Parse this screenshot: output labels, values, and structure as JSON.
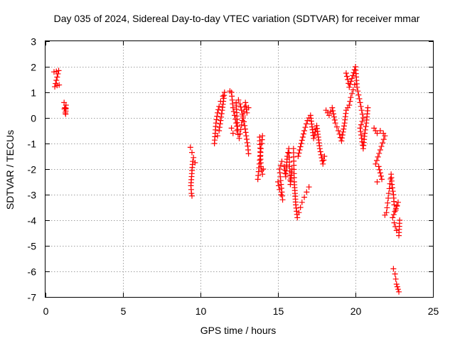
{
  "chart_data": {
    "type": "scatter",
    "title": "Day 035 of 2024, Sidereal Day-to-day VTEC variation (SDTVAR) for receiver mmar",
    "xlabel": "GPS time / hours",
    "ylabel": "SDTVAR / TECUs",
    "xlim": [
      0,
      25
    ],
    "ylim": [
      -7,
      3
    ],
    "xticks": [
      0,
      5,
      10,
      15,
      20,
      25
    ],
    "yticks": [
      3,
      2,
      1,
      0,
      -1,
      -2,
      -3,
      -4,
      -5,
      -6,
      -7
    ],
    "grid": true,
    "marker": "plus",
    "color": "#ff0000",
    "segments": [
      [
        [
          0.55,
          1.8
        ],
        [
          0.7,
          1.82
        ],
        [
          0.85,
          1.85
        ],
        [
          0.6,
          1.22
        ],
        [
          0.75,
          1.27
        ],
        [
          0.88,
          1.29
        ]
      ],
      [
        [
          1.2,
          0.6
        ],
        [
          1.25,
          0.4
        ],
        [
          1.28,
          0.2
        ],
        [
          1.32,
          0.5
        ],
        [
          1.3,
          0.15
        ],
        [
          1.22,
          0.35
        ]
      ],
      [
        [
          9.35,
          -1.15
        ],
        [
          9.45,
          -1.35
        ],
        [
          9.55,
          -1.55
        ],
        [
          9.65,
          -1.75
        ],
        [
          9.5,
          -1.7
        ],
        [
          9.38,
          -2.65
        ],
        [
          9.42,
          -2.95
        ],
        [
          9.45,
          -3.05
        ]
      ],
      [
        [
          10.9,
          -1.0
        ],
        [
          10.95,
          -0.6
        ],
        [
          11.0,
          -0.2
        ],
        [
          11.1,
          0.2
        ],
        [
          11.2,
          0.45
        ],
        [
          11.3,
          0.65
        ],
        [
          11.45,
          0.85
        ],
        [
          11.55,
          1.0
        ],
        [
          11.4,
          0.3
        ],
        [
          11.3,
          -0.1
        ],
        [
          11.2,
          -0.5
        ],
        [
          11.1,
          -0.7
        ]
      ],
      [
        [
          11.9,
          1.05
        ],
        [
          12.0,
          1.0
        ],
        [
          12.05,
          0.7
        ],
        [
          12.1,
          0.4
        ],
        [
          12.2,
          0.1
        ],
        [
          12.3,
          -0.2
        ],
        [
          12.4,
          -0.45
        ],
        [
          12.3,
          0.6
        ],
        [
          12.45,
          0.7
        ],
        [
          12.55,
          0.55
        ],
        [
          12.65,
          0.3
        ],
        [
          12.75,
          0.0
        ],
        [
          12.85,
          -0.3
        ],
        [
          12.95,
          -0.7
        ],
        [
          13.05,
          -1.1
        ],
        [
          13.1,
          -1.4
        ]
      ],
      [
        [
          12.0,
          -0.4
        ],
        [
          12.1,
          -0.6
        ],
        [
          12.35,
          -0.5
        ],
        [
          12.5,
          -0.8
        ],
        [
          12.9,
          0.6
        ],
        [
          13.0,
          0.2
        ],
        [
          13.1,
          0.4
        ]
      ],
      [
        [
          13.7,
          -2.4
        ],
        [
          13.75,
          -2.1
        ],
        [
          13.8,
          -1.8
        ],
        [
          13.85,
          -1.5
        ],
        [
          13.9,
          -1.2
        ],
        [
          13.95,
          -1.0
        ],
        [
          14.0,
          -0.7
        ],
        [
          13.82,
          -0.75
        ],
        [
          13.9,
          -1.9
        ],
        [
          14.0,
          -2.2
        ],
        [
          14.05,
          -2.0
        ]
      ],
      [
        [
          15.0,
          -2.5
        ],
        [
          15.1,
          -2.8
        ],
        [
          15.2,
          -3.0
        ],
        [
          15.3,
          -3.2
        ],
        [
          15.1,
          -2.0
        ],
        [
          15.25,
          -1.7
        ],
        [
          15.4,
          -1.9
        ],
        [
          15.5,
          -2.3
        ],
        [
          15.6,
          -1.5
        ],
        [
          15.7,
          -1.2
        ],
        [
          15.8,
          -2.6
        ],
        [
          15.9,
          -2.0
        ]
      ],
      [
        [
          16.0,
          -1.2
        ],
        [
          16.05,
          -2.5
        ],
        [
          16.15,
          -3.4
        ],
        [
          16.25,
          -3.9
        ],
        [
          16.35,
          -3.7
        ],
        [
          16.45,
          -3.5
        ],
        [
          16.55,
          -3.3
        ],
        [
          16.7,
          -3.1
        ],
        [
          16.85,
          -2.9
        ],
        [
          17.0,
          -2.7
        ]
      ],
      [
        [
          16.3,
          -1.5
        ],
        [
          16.5,
          -1.0
        ],
        [
          16.7,
          -0.5
        ],
        [
          16.9,
          -0.1
        ],
        [
          17.1,
          0.1
        ],
        [
          17.3,
          -0.8
        ],
        [
          17.5,
          -0.3
        ],
        [
          17.7,
          -1.2
        ],
        [
          17.9,
          -1.8
        ],
        [
          18.0,
          -1.5
        ]
      ],
      [
        [
          18.1,
          0.3
        ],
        [
          18.3,
          0.1
        ],
        [
          18.5,
          0.4
        ],
        [
          18.7,
          -0.2
        ],
        [
          18.9,
          -0.5
        ],
        [
          19.1,
          -0.9
        ],
        [
          19.3,
          -0.2
        ],
        [
          19.4,
          0.3
        ],
        [
          19.6,
          0.5
        ],
        [
          19.7,
          0.8
        ],
        [
          19.85,
          1.1
        ],
        [
          19.95,
          1.3
        ]
      ],
      [
        [
          19.4,
          1.75
        ],
        [
          19.5,
          1.5
        ],
        [
          19.6,
          1.2
        ],
        [
          20.0,
          2.0
        ],
        [
          20.05,
          1.6
        ],
        [
          20.1,
          1.2
        ],
        [
          20.2,
          0.9
        ],
        [
          20.3,
          0.6
        ],
        [
          20.4,
          0.3
        ],
        [
          20.5,
          0.0
        ],
        [
          20.3,
          -0.4
        ],
        [
          20.4,
          -0.8
        ],
        [
          20.5,
          -1.2
        ],
        [
          20.6,
          -0.6
        ],
        [
          20.7,
          -0.2
        ],
        [
          20.8,
          0.4
        ]
      ],
      [
        [
          21.2,
          -0.4
        ],
        [
          21.4,
          -0.6
        ],
        [
          21.6,
          -0.5
        ],
        [
          21.8,
          -0.6
        ],
        [
          21.9,
          -0.7
        ],
        [
          21.3,
          -1.8
        ],
        [
          21.5,
          -1.9
        ],
        [
          21.7,
          -2.4
        ],
        [
          21.4,
          -2.5
        ]
      ],
      [
        [
          21.9,
          -3.8
        ],
        [
          22.0,
          -3.7
        ],
        [
          22.3,
          -2.2
        ],
        [
          22.35,
          -2.6
        ],
        [
          22.45,
          -3.0
        ],
        [
          22.5,
          -3.4
        ],
        [
          22.6,
          -3.6
        ],
        [
          22.75,
          -3.3
        ],
        [
          22.4,
          -3.9
        ],
        [
          22.5,
          -4.1
        ],
        [
          22.65,
          -4.4
        ],
        [
          22.8,
          -4.6
        ],
        [
          22.85,
          -4.0
        ]
      ],
      [
        [
          22.45,
          -5.9
        ],
        [
          22.55,
          -6.1
        ],
        [
          22.6,
          -6.3
        ],
        [
          22.65,
          -6.5
        ],
        [
          22.7,
          -6.6
        ],
        [
          22.75,
          -6.7
        ],
        [
          22.8,
          -6.8
        ]
      ]
    ]
  }
}
